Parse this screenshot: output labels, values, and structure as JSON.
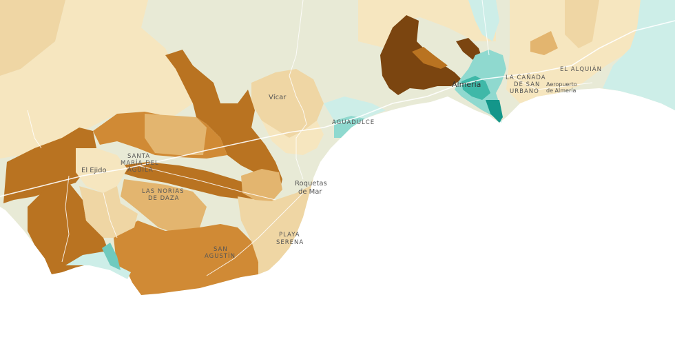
{
  "palette": {
    "sea": "#ffffff",
    "pale_green": "#e8ead6",
    "cream": "#f6e6bf",
    "light_tan": "#efd6a4",
    "tan": "#e3b56f",
    "ochre": "#d08a35",
    "brown": "#b97321",
    "dark_brown": "#7b4510",
    "light_teal": "#cdeee8",
    "teal": "#8fd9cf",
    "mid_teal": "#3fb8a8",
    "dark_teal": "#14968a"
  },
  "labels": {
    "vicar": "Vícar",
    "aguadulce": "AGUADULCE",
    "almeria": "Almería",
    "la_canada_1": "LA CAÑADA",
    "la_canada_2": "DE SAN",
    "la_canada_3": "URBANO",
    "el_alquian": "EL ALQUIÁN",
    "aeropuerto_1": "Aeropuerto",
    "aeropuerto_2": "de Almería",
    "santa_maria_1": "SANTA",
    "santa_maria_2": "MARÍA DEL",
    "santa_maria_3": "ÁGUILA",
    "el_ejido": "El Ejido",
    "las_norias_1": "LAS NORIAS",
    "las_norias_2": "DE DAZA",
    "roquetas_1": "Roquetas",
    "roquetas_2": "de Mar",
    "playa_serena_1": "PLAYA",
    "playa_serena_2": "SERENA",
    "san_agustin_1": "SAN",
    "san_agustin_2": "AGUSTÍN"
  }
}
